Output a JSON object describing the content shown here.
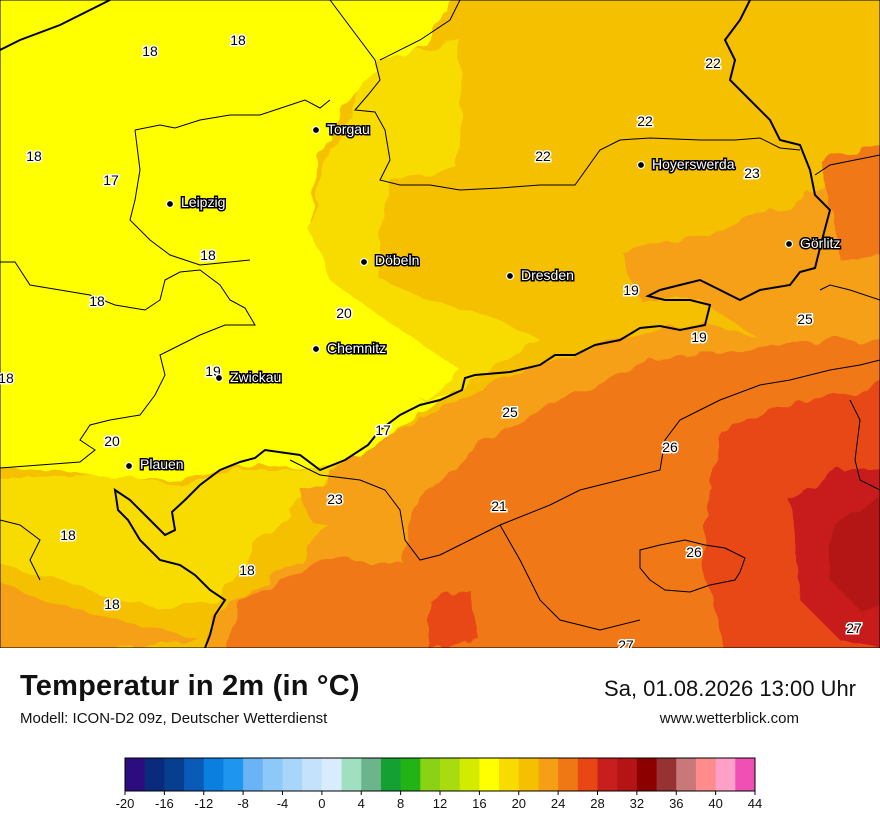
{
  "footer": {
    "title": "Temperatur in 2m (in °C)",
    "subtitle": "Modell: ICON-D2 09z, Deutscher Wetterdienst",
    "datetime": "Sa, 01.08.2026 13:00 Uhr",
    "website": "www.wetterblick.com"
  },
  "cities": [
    {
      "name": "Torgau"
    },
    {
      "name": "Leipzig"
    },
    {
      "name": "Döbeln"
    },
    {
      "name": "Dresden"
    },
    {
      "name": "Hoyerswerda"
    },
    {
      "name": "Görlitz"
    },
    {
      "name": "Chemnitz"
    },
    {
      "name": "Zwickau"
    },
    {
      "name": "Plauen"
    }
  ],
  "temperature_labels": [
    "18",
    "18",
    "22",
    "22",
    "22",
    "18",
    "17",
    "23",
    "18",
    "18",
    "20",
    "19",
    "19",
    "25",
    "18",
    "19",
    "20",
    "17",
    "25",
    "26",
    "23",
    "21",
    "18",
    "26",
    "18",
    "18",
    "27",
    "27"
  ],
  "colorbar": {
    "ticks": [
      "-20",
      "-16",
      "-12",
      "-8",
      "-4",
      "0",
      "4",
      "8",
      "12",
      "16",
      "20",
      "24",
      "28",
      "32",
      "36",
      "40",
      "44"
    ],
    "colors": [
      "#2c0c7e",
      "#0a2a7e",
      "#083e90",
      "#0a5ab8",
      "#0a7fe0",
      "#1e96f0",
      "#6ab4f6",
      "#8cc8f8",
      "#a8d6fa",
      "#c4e2fc",
      "#d8ecfe",
      "#a0e0c0",
      "#6cb48c",
      "#14a032",
      "#22b414",
      "#8cd214",
      "#a8dc10",
      "#d2eb00",
      "#ffff00",
      "#f8dc00",
      "#f5c000",
      "#f5a014",
      "#f07814",
      "#e84614",
      "#c81e1e",
      "#b41414",
      "#8c0000",
      "#963232",
      "#c87878",
      "#ff8c8c",
      "#ffa0c8",
      "#f050b4"
    ]
  }
}
